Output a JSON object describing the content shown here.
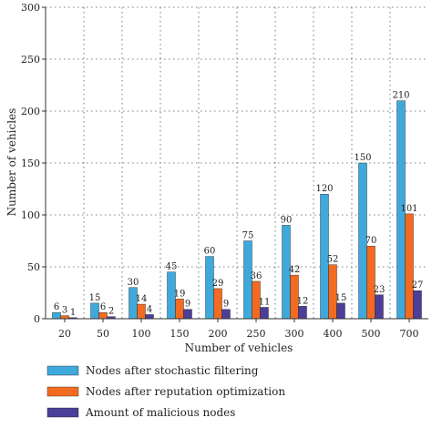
{
  "chart_data": {
    "type": "bar",
    "xlabel": "Number of vehicles",
    "ylabel": "Number of vehicles",
    "categories": [
      "20",
      "50",
      "100",
      "150",
      "200",
      "250",
      "300",
      "400",
      "500",
      "700"
    ],
    "ylim": [
      0,
      300
    ],
    "yticks": [
      0,
      50,
      100,
      150,
      200,
      250,
      300
    ],
    "grid": true,
    "legend_position": "bottom",
    "series": [
      {
        "name": "Nodes after stochastic filtering",
        "color": "#3fa9dc",
        "values": [
          6,
          15,
          30,
          45,
          60,
          75,
          90,
          120,
          150,
          210
        ],
        "labels": [
          "6",
          "15",
          "30",
          "45",
          "60",
          "75",
          "90",
          "120",
          "150",
          "210"
        ]
      },
      {
        "name": "Nodes after reputation optimization",
        "color": "#f26b21",
        "values": [
          3,
          6,
          14,
          19,
          29,
          36,
          42,
          52,
          70,
          101
        ],
        "labels": [
          "3",
          "6",
          "14",
          "19",
          "29",
          "36",
          "42",
          "52",
          "70",
          "101"
        ]
      },
      {
        "name": "Amount of malicious nodes",
        "color": "#4b3f99",
        "values": [
          1,
          2,
          4,
          9,
          9,
          11,
          12,
          15,
          23,
          27
        ],
        "labels": [
          "1",
          "2",
          "4",
          "9",
          "9",
          "11",
          "12",
          "15",
          "23",
          "27"
        ]
      }
    ]
  }
}
